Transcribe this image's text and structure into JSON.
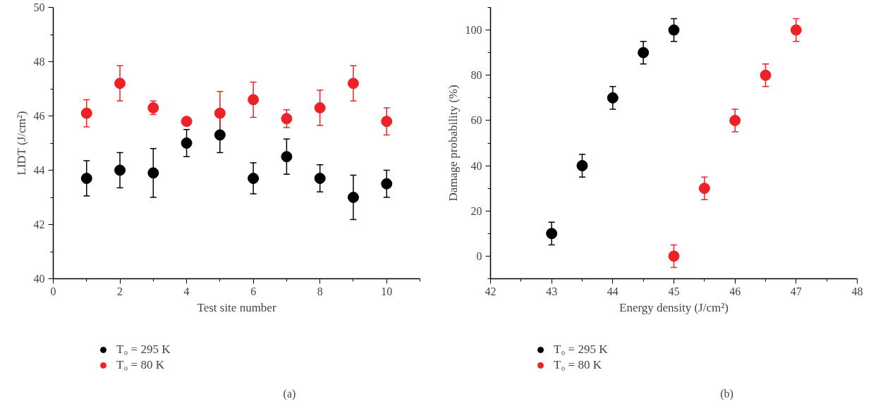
{
  "chart_data": [
    {
      "type": "scatter",
      "xlabel": "Test site number",
      "ylabel": "LIDT (J/cm²)",
      "annotations": [
        "(a)"
      ],
      "x": [
        1,
        2,
        3,
        4,
        5,
        6,
        7,
        8,
        9,
        10
      ],
      "xlim": [
        0,
        11
      ],
      "xticks": [
        0,
        2,
        4,
        6,
        8,
        10
      ],
      "ylim": [
        40,
        50
      ],
      "yticks": [
        40,
        42,
        44,
        46,
        48,
        50
      ],
      "grid": false,
      "legend": "bottom",
      "marker": "circle",
      "series": [
        {
          "name": "T₀ = 295 K",
          "color": "#000000",
          "values": [
            43.7,
            44.0,
            43.9,
            45.0,
            45.3,
            43.7,
            44.5,
            43.7,
            43.0,
            43.5
          ],
          "errors": [
            0.65,
            0.65,
            0.9,
            0.5,
            0.65,
            0.57,
            0.65,
            0.5,
            0.82,
            0.5
          ]
        },
        {
          "name": "T₀ = 80 K",
          "color": "#ec2227",
          "values": [
            46.1,
            47.2,
            46.3,
            45.8,
            46.1,
            46.6,
            45.9,
            46.3,
            47.2,
            45.8
          ],
          "errors": [
            0.5,
            0.65,
            0.25,
            0.1,
            0.8,
            0.65,
            0.33,
            0.65,
            0.65,
            0.5
          ]
        }
      ]
    },
    {
      "type": "scatter",
      "xlabel": "Energy density (J/cm²)",
      "ylabel": "Damage probability (%)",
      "annotations": [
        "(b)"
      ],
      "xlim": [
        42,
        48
      ],
      "xticks": [
        42,
        43,
        44,
        45,
        46,
        47,
        48
      ],
      "ylim": [
        -10,
        110
      ],
      "yticks": [
        0,
        20,
        40,
        60,
        80,
        100
      ],
      "grid": false,
      "legend": "bottom",
      "marker": "circle",
      "series": [
        {
          "name": "T₀ = 295 K",
          "color": "#000000",
          "x": [
            43,
            43.5,
            44,
            44.5,
            45
          ],
          "values": [
            10,
            40,
            70,
            90,
            100
          ],
          "errors": [
            5,
            5,
            5,
            5,
            5
          ]
        },
        {
          "name": "T₀ = 80 K",
          "color": "#ec2227",
          "x": [
            45,
            45.5,
            46,
            46.5,
            47
          ],
          "values": [
            0,
            30,
            60,
            80,
            100
          ],
          "errors": [
            5,
            5,
            5,
            5,
            5
          ]
        }
      ]
    }
  ]
}
